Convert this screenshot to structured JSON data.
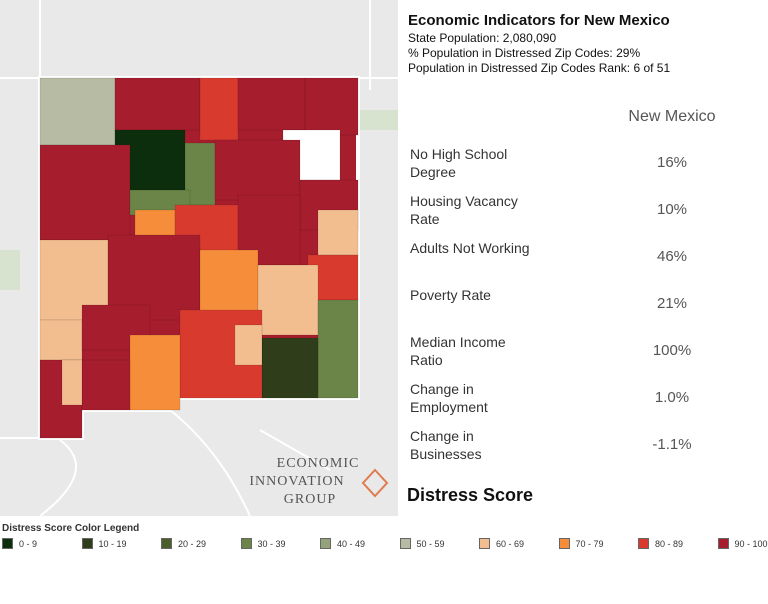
{
  "header": {
    "title": "Economic Indicators for New Mexico",
    "lines": [
      "State Population: 2,080,090",
      "% Population in Distressed Zip Codes: 29%",
      "Population in Distressed Zip Codes Rank: 6 of 51"
    ]
  },
  "table": {
    "column_header": "New Mexico",
    "rows": [
      {
        "label": "No High School Degree",
        "value": "16%"
      },
      {
        "label": "Housing Vacancy Rate",
        "value": "10%"
      },
      {
        "label": "Adults Not Working",
        "value": "46%"
      },
      {
        "label": "Poverty Rate",
        "value": "21%"
      },
      {
        "label": "Median Income Ratio",
        "value": "100%"
      },
      {
        "label": "Change in Employment",
        "value": "1.0%"
      },
      {
        "label": "Change in Businesses",
        "value": "-1.1%"
      }
    ]
  },
  "section_title": "Distress Score",
  "logo": {
    "lines": [
      "ECONOMIC",
      "INNOVATION",
      "GROUP"
    ]
  },
  "legend": {
    "title": "Distress Score Color Legend",
    "items": [
      {
        "label": "0 - 9",
        "color": "#0d2e0d"
      },
      {
        "label": "10 - 19",
        "color": "#2f3d1a"
      },
      {
        "label": "20 - 29",
        "color": "#4a5e2a"
      },
      {
        "label": "30 - 39",
        "color": "#6b8447"
      },
      {
        "label": "40 - 49",
        "color": "#93a27a"
      },
      {
        "label": "50 - 59",
        "color": "#b7bba3"
      },
      {
        "label": "60 - 69",
        "color": "#f3be8f"
      },
      {
        "label": "70 - 79",
        "color": "#f68d3a"
      },
      {
        "label": "80 - 89",
        "color": "#d83b2e"
      },
      {
        "label": "90 - 100",
        "color": "#a61d2d"
      }
    ]
  }
}
